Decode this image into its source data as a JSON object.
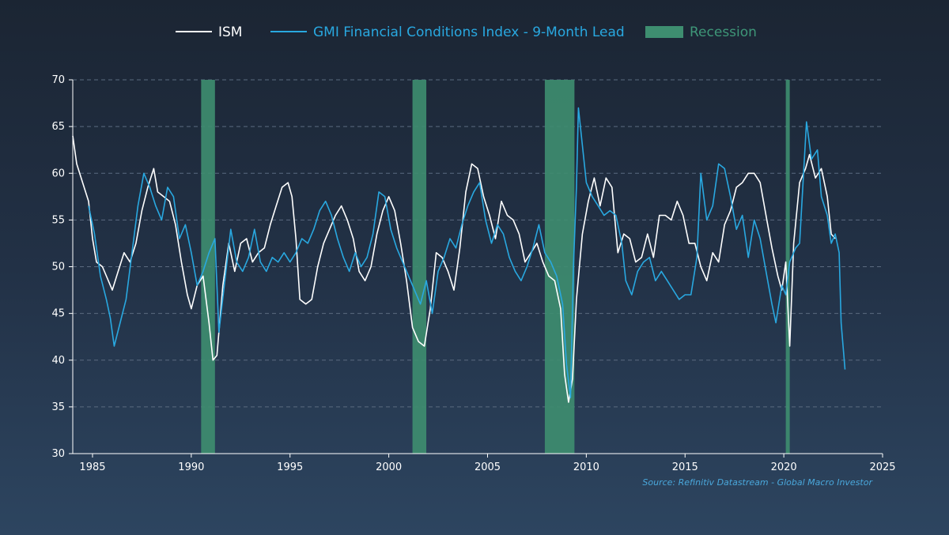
{
  "chart_data": {
    "type": "line",
    "title": "",
    "xlabel": "",
    "ylabel": "",
    "xlim": [
      1984,
      2025
    ],
    "ylim": [
      30,
      70
    ],
    "x_ticks": [
      "1985",
      "1990",
      "1995",
      "2000",
      "2005",
      "2010",
      "2015",
      "2020",
      "2025"
    ],
    "y_ticks": [
      "30",
      "35",
      "40",
      "45",
      "50",
      "55",
      "60",
      "65",
      "70"
    ],
    "grid": "horizontal dashed",
    "legend_position": "top-center",
    "legend": {
      "ism": "ISM",
      "gmi": "GMI Financial Conditions Index - 9-Month Lead",
      "recession": "Recession"
    },
    "colors": {
      "ism": "#ffffff",
      "gmi": "#29a8e0",
      "recession": "#3e8e70",
      "recession_text": "#3e9678",
      "grid": "#5b6b80",
      "axis": "#ffffff",
      "source": "#4aa8dc"
    },
    "recessions": [
      [
        1990.5,
        1991.2
      ],
      [
        2001.2,
        2001.9
      ],
      [
        2007.9,
        2009.4
      ],
      [
        2020.1,
        2020.3
      ]
    ],
    "series": [
      {
        "name": "ISM",
        "points": [
          [
            1984.0,
            64.0
          ],
          [
            1984.2,
            61.0
          ],
          [
            1984.5,
            59.0
          ],
          [
            1984.8,
            57.0
          ],
          [
            1985.0,
            53.0
          ],
          [
            1985.2,
            50.5
          ],
          [
            1985.5,
            50.0
          ],
          [
            1985.8,
            48.5
          ],
          [
            1986.0,
            47.5
          ],
          [
            1986.3,
            49.5
          ],
          [
            1986.6,
            51.5
          ],
          [
            1986.9,
            50.5
          ],
          [
            1987.2,
            52.5
          ],
          [
            1987.5,
            56.0
          ],
          [
            1987.8,
            58.5
          ],
          [
            1988.1,
            60.5
          ],
          [
            1988.3,
            58.0
          ],
          [
            1988.6,
            57.5
          ],
          [
            1988.9,
            57.0
          ],
          [
            1989.2,
            54.5
          ],
          [
            1989.5,
            50.5
          ],
          [
            1989.8,
            47.0
          ],
          [
            1990.0,
            45.5
          ],
          [
            1990.3,
            48.0
          ],
          [
            1990.6,
            49.0
          ],
          [
            1990.9,
            44.0
          ],
          [
            1991.1,
            40.0
          ],
          [
            1991.3,
            40.5
          ],
          [
            1991.6,
            48.0
          ],
          [
            1991.9,
            52.5
          ],
          [
            1992.2,
            49.5
          ],
          [
            1992.5,
            52.5
          ],
          [
            1992.8,
            53.0
          ],
          [
            1993.1,
            50.5
          ],
          [
            1993.4,
            51.5
          ],
          [
            1993.7,
            52.0
          ],
          [
            1994.0,
            54.5
          ],
          [
            1994.3,
            56.5
          ],
          [
            1994.6,
            58.5
          ],
          [
            1994.9,
            59.0
          ],
          [
            1995.1,
            57.5
          ],
          [
            1995.3,
            53.0
          ],
          [
            1995.5,
            46.5
          ],
          [
            1995.8,
            46.0
          ],
          [
            1996.1,
            46.5
          ],
          [
            1996.4,
            50.0
          ],
          [
            1996.7,
            52.5
          ],
          [
            1997.0,
            54.0
          ],
          [
            1997.3,
            55.5
          ],
          [
            1997.6,
            56.5
          ],
          [
            1997.9,
            55.0
          ],
          [
            1998.2,
            53.0
          ],
          [
            1998.5,
            49.5
          ],
          [
            1998.8,
            48.5
          ],
          [
            1999.1,
            50.0
          ],
          [
            1999.4,
            53.5
          ],
          [
            1999.7,
            56.0
          ],
          [
            2000.0,
            57.5
          ],
          [
            2000.3,
            56.0
          ],
          [
            2000.6,
            52.5
          ],
          [
            2000.9,
            48.5
          ],
          [
            2001.2,
            43.5
          ],
          [
            2001.5,
            42.0
          ],
          [
            2001.8,
            41.5
          ],
          [
            2002.1,
            45.5
          ],
          [
            2002.4,
            51.5
          ],
          [
            2002.7,
            51.0
          ],
          [
            2003.0,
            49.5
          ],
          [
            2003.3,
            47.5
          ],
          [
            2003.6,
            52.0
          ],
          [
            2003.9,
            58.0
          ],
          [
            2004.2,
            61.0
          ],
          [
            2004.5,
            60.5
          ],
          [
            2004.8,
            57.5
          ],
          [
            2005.1,
            55.5
          ],
          [
            2005.4,
            53.0
          ],
          [
            2005.7,
            57.0
          ],
          [
            2006.0,
            55.5
          ],
          [
            2006.3,
            55.0
          ],
          [
            2006.6,
            53.5
          ],
          [
            2006.9,
            50.5
          ],
          [
            2007.2,
            51.5
          ],
          [
            2007.5,
            52.5
          ],
          [
            2007.8,
            50.5
          ],
          [
            2008.1,
            49.0
          ],
          [
            2008.4,
            48.5
          ],
          [
            2008.7,
            45.5
          ],
          [
            2008.9,
            38.5
          ],
          [
            2009.1,
            35.5
          ],
          [
            2009.3,
            38.0
          ],
          [
            2009.5,
            46.5
          ],
          [
            2009.8,
            53.5
          ],
          [
            2010.1,
            57.0
          ],
          [
            2010.4,
            59.5
          ],
          [
            2010.7,
            56.5
          ],
          [
            2011.0,
            59.5
          ],
          [
            2011.3,
            58.5
          ],
          [
            2011.6,
            51.5
          ],
          [
            2011.9,
            53.5
          ],
          [
            2012.2,
            53.0
          ],
          [
            2012.5,
            50.5
          ],
          [
            2012.8,
            51.0
          ],
          [
            2013.1,
            53.5
          ],
          [
            2013.4,
            51.0
          ],
          [
            2013.7,
            55.5
          ],
          [
            2014.0,
            55.5
          ],
          [
            2014.3,
            55.0
          ],
          [
            2014.6,
            57.0
          ],
          [
            2014.9,
            55.5
          ],
          [
            2015.2,
            52.5
          ],
          [
            2015.5,
            52.5
          ],
          [
            2015.8,
            50.0
          ],
          [
            2016.1,
            48.5
          ],
          [
            2016.4,
            51.5
          ],
          [
            2016.7,
            50.5
          ],
          [
            2017.0,
            54.5
          ],
          [
            2017.3,
            56.0
          ],
          [
            2017.6,
            58.5
          ],
          [
            2017.9,
            59.0
          ],
          [
            2018.2,
            60.0
          ],
          [
            2018.5,
            60.0
          ],
          [
            2018.8,
            59.0
          ],
          [
            2019.1,
            55.5
          ],
          [
            2019.4,
            52.0
          ],
          [
            2019.7,
            49.0
          ],
          [
            2019.9,
            47.5
          ],
          [
            2020.1,
            50.5
          ],
          [
            2020.3,
            41.5
          ],
          [
            2020.5,
            52.5
          ],
          [
            2020.8,
            59.0
          ],
          [
            2021.1,
            60.5
          ],
          [
            2021.3,
            62.0
          ],
          [
            2021.6,
            59.5
          ],
          [
            2021.9,
            60.5
          ],
          [
            2022.2,
            57.5
          ],
          [
            2022.4,
            53.5
          ],
          [
            2022.6,
            53.0
          ]
        ]
      },
      {
        "name": "GMI Financial Conditions Index - 9-Month Lead",
        "points": [
          [
            1984.8,
            56.5
          ],
          [
            1985.1,
            53.5
          ],
          [
            1985.4,
            49.0
          ],
          [
            1985.7,
            46.5
          ],
          [
            1985.9,
            44.5
          ],
          [
            1986.1,
            41.5
          ],
          [
            1986.4,
            44.0
          ],
          [
            1986.7,
            46.5
          ],
          [
            1987.0,
            51.5
          ],
          [
            1987.3,
            56.5
          ],
          [
            1987.6,
            60.0
          ],
          [
            1987.9,
            58.5
          ],
          [
            1988.2,
            56.5
          ],
          [
            1988.5,
            55.0
          ],
          [
            1988.8,
            58.5
          ],
          [
            1989.1,
            57.5
          ],
          [
            1989.4,
            53.0
          ],
          [
            1989.7,
            54.5
          ],
          [
            1990.0,
            51.5
          ],
          [
            1990.3,
            48.0
          ],
          [
            1990.6,
            49.5
          ],
          [
            1990.9,
            51.5
          ],
          [
            1991.2,
            53.0
          ],
          [
            1991.4,
            43.0
          ],
          [
            1991.7,
            48.5
          ],
          [
            1992.0,
            54.0
          ],
          [
            1992.3,
            50.5
          ],
          [
            1992.6,
            49.5
          ],
          [
            1992.9,
            51.0
          ],
          [
            1993.2,
            54.0
          ],
          [
            1993.5,
            50.5
          ],
          [
            1993.8,
            49.5
          ],
          [
            1994.1,
            51.0
          ],
          [
            1994.4,
            50.5
          ],
          [
            1994.7,
            51.5
          ],
          [
            1995.0,
            50.5
          ],
          [
            1995.3,
            51.5
          ],
          [
            1995.6,
            53.0
          ],
          [
            1995.9,
            52.5
          ],
          [
            1996.2,
            54.0
          ],
          [
            1996.5,
            56.0
          ],
          [
            1996.8,
            57.0
          ],
          [
            1997.1,
            55.5
          ],
          [
            1997.4,
            53.0
          ],
          [
            1997.7,
            51.0
          ],
          [
            1998.0,
            49.5
          ],
          [
            1998.3,
            51.5
          ],
          [
            1998.6,
            50.0
          ],
          [
            1998.9,
            51.0
          ],
          [
            1999.2,
            53.5
          ],
          [
            1999.5,
            58.0
          ],
          [
            1999.8,
            57.5
          ],
          [
            2000.1,
            54.0
          ],
          [
            2000.4,
            52.0
          ],
          [
            2000.7,
            50.5
          ],
          [
            2001.0,
            49.0
          ],
          [
            2001.3,
            47.5
          ],
          [
            2001.6,
            46.0
          ],
          [
            2001.9,
            48.5
          ],
          [
            2002.2,
            45.0
          ],
          [
            2002.5,
            49.5
          ],
          [
            2002.8,
            51.0
          ],
          [
            2003.1,
            53.0
          ],
          [
            2003.4,
            52.0
          ],
          [
            2003.7,
            54.5
          ],
          [
            2004.0,
            56.5
          ],
          [
            2004.3,
            58.0
          ],
          [
            2004.6,
            59.0
          ],
          [
            2004.9,
            55.0
          ],
          [
            2005.2,
            52.5
          ],
          [
            2005.5,
            54.5
          ],
          [
            2005.8,
            53.5
          ],
          [
            2006.1,
            51.0
          ],
          [
            2006.4,
            49.5
          ],
          [
            2006.7,
            48.5
          ],
          [
            2007.0,
            50.0
          ],
          [
            2007.3,
            52.0
          ],
          [
            2007.6,
            54.5
          ],
          [
            2007.9,
            51.5
          ],
          [
            2008.2,
            50.5
          ],
          [
            2008.5,
            49.0
          ],
          [
            2008.8,
            46.0
          ],
          [
            2009.0,
            39.5
          ],
          [
            2009.2,
            36.0
          ],
          [
            2009.35,
            50.0
          ],
          [
            2009.5,
            58.5
          ],
          [
            2009.6,
            67.0
          ],
          [
            2009.8,
            63.0
          ],
          [
            2010.0,
            59.0
          ],
          [
            2010.3,
            57.5
          ],
          [
            2010.6,
            56.5
          ],
          [
            2010.9,
            55.5
          ],
          [
            2011.2,
            56.0
          ],
          [
            2011.5,
            55.5
          ],
          [
            2011.8,
            52.5
          ],
          [
            2012.0,
            48.5
          ],
          [
            2012.3,
            47.0
          ],
          [
            2012.6,
            49.5
          ],
          [
            2012.9,
            50.5
          ],
          [
            2013.2,
            51.0
          ],
          [
            2013.5,
            48.5
          ],
          [
            2013.8,
            49.5
          ],
          [
            2014.1,
            48.5
          ],
          [
            2014.4,
            47.5
          ],
          [
            2014.7,
            46.5
          ],
          [
            2015.0,
            47.0
          ],
          [
            2015.3,
            47.0
          ],
          [
            2015.6,
            51.0
          ],
          [
            2015.8,
            60.0
          ],
          [
            2016.1,
            55.0
          ],
          [
            2016.4,
            56.5
          ],
          [
            2016.7,
            61.0
          ],
          [
            2017.0,
            60.5
          ],
          [
            2017.3,
            57.5
          ],
          [
            2017.6,
            54.0
          ],
          [
            2017.9,
            55.5
          ],
          [
            2018.2,
            51.0
          ],
          [
            2018.5,
            55.0
          ],
          [
            2018.8,
            53.0
          ],
          [
            2019.1,
            49.5
          ],
          [
            2019.4,
            46.0
          ],
          [
            2019.6,
            44.0
          ],
          [
            2019.9,
            48.0
          ],
          [
            2020.1,
            47.0
          ],
          [
            2020.3,
            50.5
          ],
          [
            2020.6,
            52.0
          ],
          [
            2020.8,
            52.5
          ],
          [
            2021.0,
            60.0
          ],
          [
            2021.15,
            65.5
          ],
          [
            2021.4,
            61.5
          ],
          [
            2021.7,
            62.5
          ],
          [
            2021.9,
            57.5
          ],
          [
            2022.2,
            55.5
          ],
          [
            2022.4,
            52.5
          ],
          [
            2022.6,
            53.5
          ],
          [
            2022.8,
            51.5
          ],
          [
            2022.9,
            44.0
          ],
          [
            2023.1,
            39.0
          ]
        ]
      }
    ]
  },
  "source_note": "Source: Refinitiv Datastream - Global Macro Investor"
}
